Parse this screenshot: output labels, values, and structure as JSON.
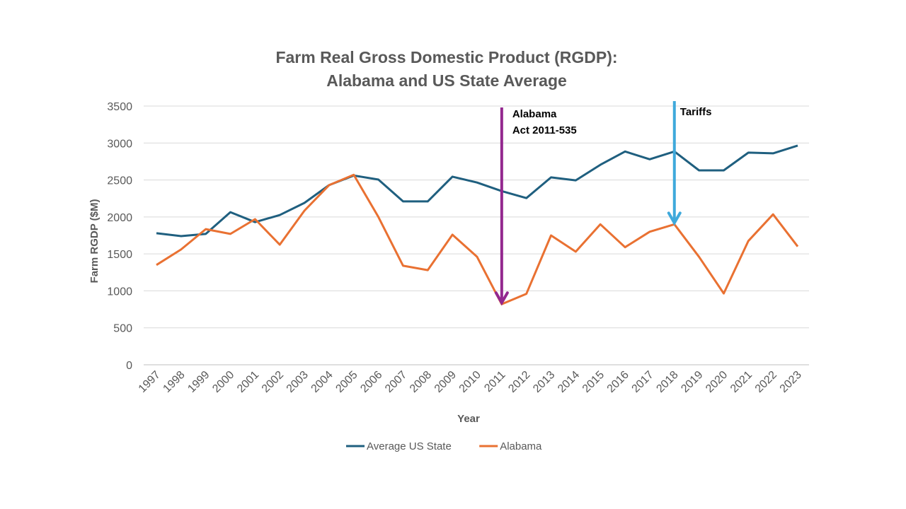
{
  "chart_data": {
    "type": "line",
    "title": [
      "Farm Real Gross Domestic Product (RGDP):",
      "Alabama and US State Average"
    ],
    "xlabel": "Year",
    "ylabel": "Farm RGDP ($M)",
    "ylim": [
      0,
      3500
    ],
    "yticks": [
      0,
      500,
      1000,
      1500,
      2000,
      2500,
      3000,
      3500
    ],
    "grid": true,
    "legend_position": "bottom",
    "x": [
      1997,
      1998,
      1999,
      2000,
      2001,
      2002,
      2003,
      2004,
      2005,
      2006,
      2007,
      2008,
      2009,
      2010,
      2011,
      2012,
      2013,
      2014,
      2015,
      2016,
      2017,
      2018,
      2019,
      2020,
      2021,
      2022,
      2023
    ],
    "series": [
      {
        "name": "Average US State",
        "color": "#1F5F7F",
        "values": [
          1780,
          1740,
          1770,
          2065,
          1930,
          2025,
          2190,
          2430,
          2560,
          2505,
          2210,
          2210,
          2545,
          2465,
          2350,
          2255,
          2535,
          2495,
          2705,
          2885,
          2780,
          2885,
          2630,
          2630,
          2870,
          2860,
          2965
        ]
      },
      {
        "name": "Alabama",
        "color": "#E97132",
        "values": [
          1350,
          1560,
          1835,
          1770,
          1970,
          1625,
          2085,
          2430,
          2570,
          2000,
          1340,
          1280,
          1760,
          1460,
          820,
          960,
          1750,
          1530,
          1900,
          1590,
          1800,
          1900,
          1460,
          965,
          1675,
          2035,
          1600
        ]
      }
    ],
    "annotations": [
      {
        "text": [
          "Alabama",
          "Act 2011-535"
        ],
        "year": 2011,
        "color": "#93288F"
      },
      {
        "text": [
          "Tariffs"
        ],
        "year": 2018,
        "color": "#3FA9DB"
      }
    ]
  }
}
